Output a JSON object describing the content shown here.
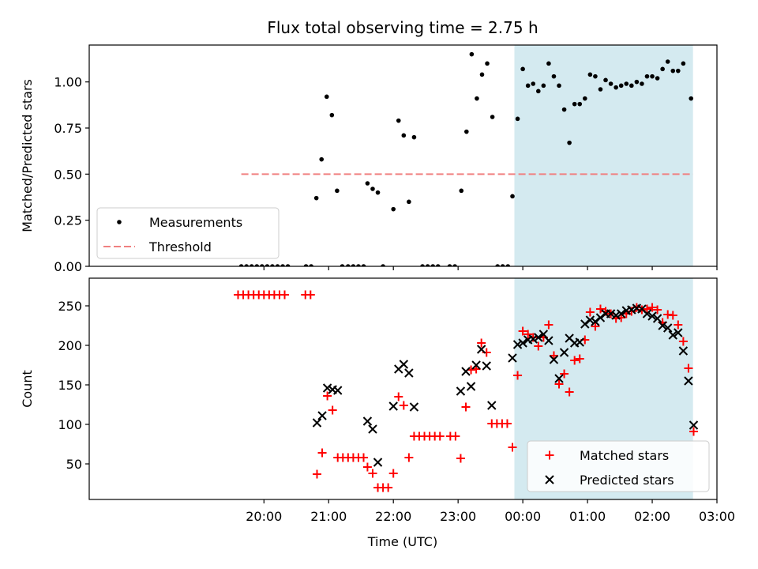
{
  "chart_data": [
    {
      "type": "scatter",
      "title": "Flux total observing time = 2.75 h",
      "xlabel": "",
      "ylabel": "Matched/Predicted stars",
      "ylim": [
        0,
        1.2
      ],
      "yticks": [
        0.0,
        0.25,
        0.5,
        0.75,
        1.0
      ],
      "ytick_labels": [
        "0.00",
        "0.25",
        "0.50",
        "0.75",
        "1.00"
      ],
      "x_unit": "hours since 00:00 UTC (negative = previous day)",
      "xlim": [
        -6.7,
        3.0
      ],
      "shaded_x": [
        -0.13,
        2.63
      ],
      "shade_color": "#d4eaf0",
      "legend": {
        "placement": "lower-left",
        "entries": [
          {
            "label": "Measurements",
            "marker": "dot",
            "color": "#000000"
          },
          {
            "label": "Threshold",
            "marker": "dashed-line",
            "color": "#f08080"
          }
        ]
      },
      "threshold": {
        "value": 0.5,
        "x": [
          -4.35,
          2.63
        ],
        "color": "#f08080"
      },
      "series": [
        {
          "name": "Measurements",
          "color": "#000000",
          "points": [
            [
              -4.35,
              0
            ],
            [
              -4.27,
              0
            ],
            [
              -4.19,
              0
            ],
            [
              -4.11,
              0
            ],
            [
              -4.03,
              0
            ],
            [
              -3.95,
              0
            ],
            [
              -3.87,
              0
            ],
            [
              -3.79,
              0
            ],
            [
              -3.71,
              0
            ],
            [
              -3.63,
              0
            ],
            [
              -3.35,
              0
            ],
            [
              -3.27,
              0
            ],
            [
              -3.19,
              0.37
            ],
            [
              -3.11,
              0.58
            ],
            [
              -3.03,
              0.92
            ],
            [
              -2.95,
              0.82
            ],
            [
              -2.87,
              0.41
            ],
            [
              -2.79,
              0
            ],
            [
              -2.7,
              0
            ],
            [
              -2.62,
              0
            ],
            [
              -2.54,
              0
            ],
            [
              -2.46,
              0
            ],
            [
              -2.4,
              0.45
            ],
            [
              -2.32,
              0.42
            ],
            [
              -2.24,
              0.4
            ],
            [
              -2.16,
              0
            ],
            [
              -2.0,
              0.31
            ],
            [
              -1.92,
              0.79
            ],
            [
              -1.84,
              0.71
            ],
            [
              -1.76,
              0.35
            ],
            [
              -1.68,
              0.7
            ],
            [
              -1.55,
              0
            ],
            [
              -1.47,
              0
            ],
            [
              -1.39,
              0
            ],
            [
              -1.31,
              0
            ],
            [
              -1.13,
              0
            ],
            [
              -1.05,
              0
            ],
            [
              -0.95,
              0.41
            ],
            [
              -0.87,
              0.73
            ],
            [
              -0.79,
              1.15
            ],
            [
              -0.71,
              0.91
            ],
            [
              -0.63,
              1.04
            ],
            [
              -0.55,
              1.1
            ],
            [
              -0.47,
              0.81
            ],
            [
              -0.39,
              0
            ],
            [
              -0.31,
              0
            ],
            [
              -0.23,
              0
            ],
            [
              -0.16,
              0.38
            ],
            [
              -0.08,
              0.8
            ],
            [
              0.0,
              1.07
            ],
            [
              0.08,
              0.98
            ],
            [
              0.16,
              0.99
            ],
            [
              0.24,
              0.95
            ],
            [
              0.32,
              0.98
            ],
            [
              0.4,
              1.1
            ],
            [
              0.48,
              1.03
            ],
            [
              0.56,
              0.98
            ],
            [
              0.64,
              0.85
            ],
            [
              0.72,
              0.67
            ],
            [
              0.8,
              0.88
            ],
            [
              0.88,
              0.88
            ],
            [
              0.96,
              0.91
            ],
            [
              1.04,
              1.04
            ],
            [
              1.12,
              1.03
            ],
            [
              1.2,
              0.96
            ],
            [
              1.28,
              1.01
            ],
            [
              1.36,
              0.99
            ],
            [
              1.44,
              0.97
            ],
            [
              1.52,
              0.98
            ],
            [
              1.6,
              0.99
            ],
            [
              1.68,
              0.98
            ],
            [
              1.76,
              1.0
            ],
            [
              1.84,
              0.99
            ],
            [
              1.92,
              1.03
            ],
            [
              2.0,
              1.03
            ],
            [
              2.08,
              1.02
            ],
            [
              2.16,
              1.07
            ],
            [
              2.24,
              1.11
            ],
            [
              2.32,
              1.06
            ],
            [
              2.4,
              1.06
            ],
            [
              2.48,
              1.1
            ],
            [
              2.6,
              0.91
            ]
          ]
        }
      ]
    },
    {
      "type": "scatter",
      "title": "",
      "xlabel": "Time (UTC)",
      "ylabel": "Count",
      "ylim": [
        5,
        285
      ],
      "yticks": [
        50,
        100,
        150,
        200,
        250
      ],
      "ytick_labels": [
        "50",
        "100",
        "150",
        "200",
        "250"
      ],
      "x_unit": "hours since 00:00 UTC (negative = previous day)",
      "xlim": [
        -6.7,
        3.0
      ],
      "xticks": [
        -4,
        -3,
        -2,
        -1,
        0,
        1,
        2,
        3
      ],
      "xtick_labels": [
        "20:00",
        "21:00",
        "22:00",
        "23:00",
        "00:00",
        "01:00",
        "02:00",
        "03:00"
      ],
      "shaded_x": [
        -0.13,
        2.63
      ],
      "shade_color": "#d4eaf0",
      "legend": {
        "placement": "lower-right",
        "entries": [
          {
            "label": "Matched stars",
            "marker": "plus",
            "color": "#ff0000"
          },
          {
            "label": "Predicted stars",
            "marker": "x",
            "color": "#000000"
          }
        ]
      },
      "series": [
        {
          "name": "Matched stars",
          "color": "#ff0000",
          "points": [
            [
              -4.4,
              264
            ],
            [
              -4.32,
              264
            ],
            [
              -4.24,
              264
            ],
            [
              -4.16,
              264
            ],
            [
              -4.08,
              264
            ],
            [
              -4.0,
              264
            ],
            [
              -3.92,
              264
            ],
            [
              -3.84,
              264
            ],
            [
              -3.76,
              264
            ],
            [
              -3.68,
              264
            ],
            [
              -3.36,
              264
            ],
            [
              -3.28,
              264
            ],
            [
              -3.18,
              37
            ],
            [
              -3.1,
              64
            ],
            [
              -3.02,
              136
            ],
            [
              -2.94,
              118
            ],
            [
              -2.86,
              58
            ],
            [
              -2.78,
              58
            ],
            [
              -2.7,
              58
            ],
            [
              -2.62,
              58
            ],
            [
              -2.54,
              58
            ],
            [
              -2.46,
              58
            ],
            [
              -2.4,
              46
            ],
            [
              -2.32,
              38
            ],
            [
              -2.24,
              20
            ],
            [
              -2.16,
              20
            ],
            [
              -2.08,
              20
            ],
            [
              -2.0,
              38
            ],
            [
              -1.92,
              135
            ],
            [
              -1.84,
              124
            ],
            [
              -1.76,
              58
            ],
            [
              -1.68,
              85
            ],
            [
              -1.6,
              85
            ],
            [
              -1.52,
              85
            ],
            [
              -1.44,
              85
            ],
            [
              -1.36,
              85
            ],
            [
              -1.28,
              85
            ],
            [
              -1.12,
              85
            ],
            [
              -1.04,
              85
            ],
            [
              -0.96,
              57
            ],
            [
              -0.88,
              122
            ],
            [
              -0.8,
              169
            ],
            [
              -0.72,
              170
            ],
            [
              -0.64,
              203
            ],
            [
              -0.56,
              191
            ],
            [
              -0.48,
              101
            ],
            [
              -0.4,
              101
            ],
            [
              -0.32,
              101
            ],
            [
              -0.24,
              101
            ],
            [
              -0.16,
              71
            ],
            [
              -0.08,
              162
            ],
            [
              0.0,
              218
            ],
            [
              0.08,
              214
            ],
            [
              0.16,
              210
            ],
            [
              0.24,
              199
            ],
            [
              0.32,
              210
            ],
            [
              0.4,
              226
            ],
            [
              0.48,
              187
            ],
            [
              0.56,
              151
            ],
            [
              0.64,
              164
            ],
            [
              0.72,
              141
            ],
            [
              0.8,
              181
            ],
            [
              0.88,
              183
            ],
            [
              0.96,
              207
            ],
            [
              1.04,
              242
            ],
            [
              1.12,
              224
            ],
            [
              1.2,
              246
            ],
            [
              1.28,
              243
            ],
            [
              1.36,
              240
            ],
            [
              1.44,
              234
            ],
            [
              1.52,
              235
            ],
            [
              1.6,
              240
            ],
            [
              1.68,
              243
            ],
            [
              1.76,
              248
            ],
            [
              1.84,
              245
            ],
            [
              1.92,
              246
            ],
            [
              2.0,
              248
            ],
            [
              2.08,
              245
            ],
            [
              2.16,
              229
            ],
            [
              2.24,
              239
            ],
            [
              2.32,
              238
            ],
            [
              2.4,
              226
            ],
            [
              2.48,
              205
            ],
            [
              2.56,
              171
            ],
            [
              2.64,
              91
            ]
          ]
        },
        {
          "name": "Predicted stars",
          "color": "#000000",
          "points": [
            [
              -3.18,
              102
            ],
            [
              -3.1,
              111
            ],
            [
              -3.02,
              146
            ],
            [
              -2.94,
              144
            ],
            [
              -2.86,
              143
            ],
            [
              -2.4,
              104
            ],
            [
              -2.32,
              94
            ],
            [
              -2.24,
              52
            ],
            [
              -2.0,
              123
            ],
            [
              -1.92,
              170
            ],
            [
              -1.84,
              176
            ],
            [
              -1.76,
              165
            ],
            [
              -1.68,
              122
            ],
            [
              -0.96,
              142
            ],
            [
              -0.88,
              167
            ],
            [
              -0.8,
              148
            ],
            [
              -0.72,
              175
            ],
            [
              -0.64,
              195
            ],
            [
              -0.56,
              174
            ],
            [
              -0.48,
              124
            ],
            [
              -0.16,
              184
            ],
            [
              -0.08,
              201
            ],
            [
              0.0,
              203
            ],
            [
              0.08,
              207
            ],
            [
              0.16,
              208
            ],
            [
              0.24,
              210
            ],
            [
              0.32,
              214
            ],
            [
              0.4,
              206
            ],
            [
              0.48,
              182
            ],
            [
              0.56,
              158
            ],
            [
              0.64,
              191
            ],
            [
              0.72,
              209
            ],
            [
              0.8,
              203
            ],
            [
              0.88,
              204
            ],
            [
              0.96,
              227
            ],
            [
              1.04,
              232
            ],
            [
              1.12,
              230
            ],
            [
              1.2,
              235
            ],
            [
              1.28,
              240
            ],
            [
              1.36,
              240
            ],
            [
              1.44,
              238
            ],
            [
              1.52,
              240
            ],
            [
              1.6,
              244
            ],
            [
              1.68,
              245
            ],
            [
              1.76,
              247
            ],
            [
              1.84,
              246
            ],
            [
              1.92,
              240
            ],
            [
              2.0,
              237
            ],
            [
              2.08,
              234
            ],
            [
              2.16,
              225
            ],
            [
              2.24,
              222
            ],
            [
              2.32,
              213
            ],
            [
              2.4,
              216
            ],
            [
              2.48,
              193
            ],
            [
              2.56,
              155
            ],
            [
              2.64,
              99
            ]
          ]
        }
      ]
    }
  ]
}
